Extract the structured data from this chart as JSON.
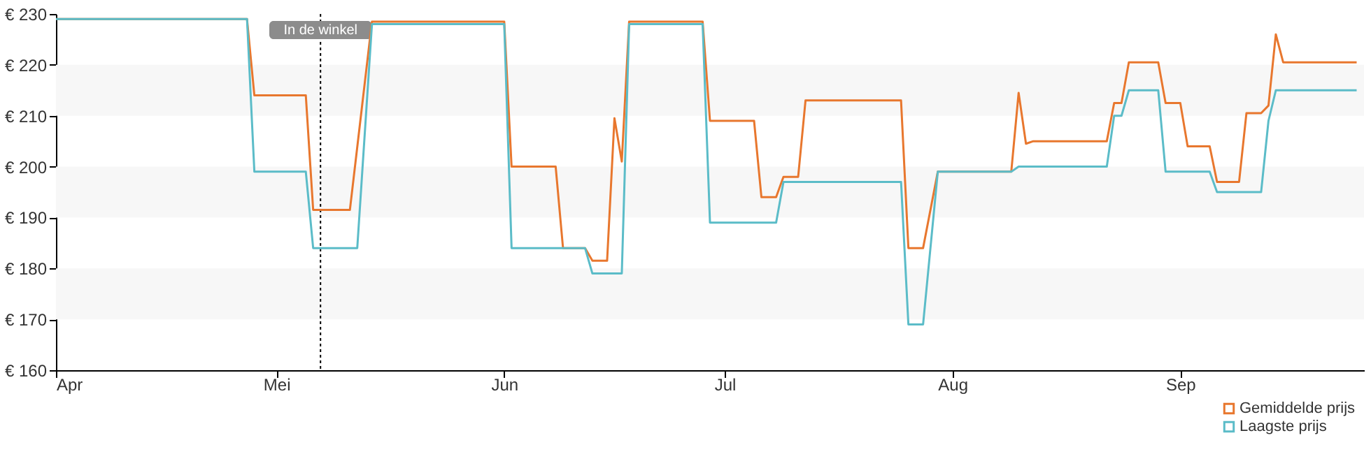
{
  "chart_data": {
    "type": "line",
    "xlim": [
      "--04-01",
      "--09-26"
    ],
    "xticks": [
      {
        "value": "--04-01",
        "label": "Apr"
      },
      {
        "value": "--05-01",
        "label": "Mei"
      },
      {
        "value": "--06-01",
        "label": "Jun"
      },
      {
        "value": "--07-01",
        "label": "Jul"
      },
      {
        "value": "--08-01",
        "label": "Aug"
      },
      {
        "value": "--09-01",
        "label": "Sep"
      }
    ],
    "ylim": [
      160,
      230
    ],
    "yticks": [
      {
        "value": 160,
        "label": "€ 160"
      },
      {
        "value": 170,
        "label": "€ 170"
      },
      {
        "value": 180,
        "label": "€ 180"
      },
      {
        "value": 190,
        "label": "€ 190"
      },
      {
        "value": 200,
        "label": "€ 200"
      },
      {
        "value": 210,
        "label": "€ 210"
      },
      {
        "value": 220,
        "label": "€ 220"
      },
      {
        "value": 230,
        "label": "€ 230"
      }
    ],
    "legend": "bottom right",
    "marker": "none",
    "line_style": "solid",
    "ref_lines": [
      {
        "axis": "x",
        "value": "--05-07",
        "label": "In de winkel",
        "line_style": "dotted",
        "color": "#000000"
      }
    ],
    "series": [
      {
        "name": "Gemiddelde prijs",
        "color": "#e8772e",
        "x": [
          "--04-01",
          "--04-27",
          "--04-28",
          "--05-05",
          "--05-06",
          "--05-11",
          "--05-14",
          "--06-01",
          "--06-02",
          "--06-08",
          "--06-09",
          "--06-12",
          "--06-13",
          "--06-15",
          "--06-16",
          "--06-17",
          "--06-18",
          "--06-28",
          "--06-29",
          "--07-05",
          "--07-06",
          "--07-08",
          "--07-09",
          "--07-11",
          "--07-12",
          "--07-25",
          "--07-26",
          "--07-28",
          "--07-30",
          "--08-09",
          "--08-10",
          "--08-11",
          "--08-12",
          "--08-22",
          "--08-23",
          "--08-24",
          "--08-25",
          "--08-29",
          "--08-30",
          "--09-01",
          "--09-02",
          "--09-05",
          "--09-06",
          "--09-09",
          "--09-10",
          "--09-12",
          "--09-13",
          "--09-14",
          "--09-15",
          "--09-25"
        ],
        "values": [
          229,
          229,
          214,
          214,
          191.5,
          191.5,
          228.5,
          228.5,
          200,
          200,
          184,
          184,
          181.5,
          181.5,
          209.5,
          201,
          228.5,
          228.5,
          209,
          209,
          194,
          194,
          198,
          198,
          213,
          213,
          184,
          184,
          199,
          199,
          214.5,
          204.5,
          205,
          205,
          212.5,
          212.5,
          220.5,
          220.5,
          212.5,
          212.5,
          204,
          204,
          197,
          197,
          210.5,
          210.5,
          212,
          226,
          220.5,
          220.5
        ]
      },
      {
        "name": "Laagste prijs",
        "color": "#5bbcc8",
        "x": [
          "--04-01",
          "--04-27",
          "--04-28",
          "--05-05",
          "--05-06",
          "--05-12",
          "--05-14",
          "--06-01",
          "--06-02",
          "--06-12",
          "--06-13",
          "--06-17",
          "--06-18",
          "--06-28",
          "--06-29",
          "--07-08",
          "--07-09",
          "--07-25",
          "--07-26",
          "--07-28",
          "--07-30",
          "--08-09",
          "--08-10",
          "--08-22",
          "--08-23",
          "--08-24",
          "--08-25",
          "--08-29",
          "--08-30",
          "--09-05",
          "--09-06",
          "--09-12",
          "--09-13",
          "--09-14",
          "--09-25"
        ],
        "values": [
          229,
          229,
          199,
          199,
          184,
          184,
          228,
          228,
          184,
          184,
          179,
          179,
          228,
          228,
          189,
          189,
          197,
          197,
          169,
          169,
          199,
          199,
          200,
          200,
          210,
          210,
          215,
          215,
          199,
          199,
          195,
          195,
          209,
          215,
          215
        ]
      }
    ]
  }
}
